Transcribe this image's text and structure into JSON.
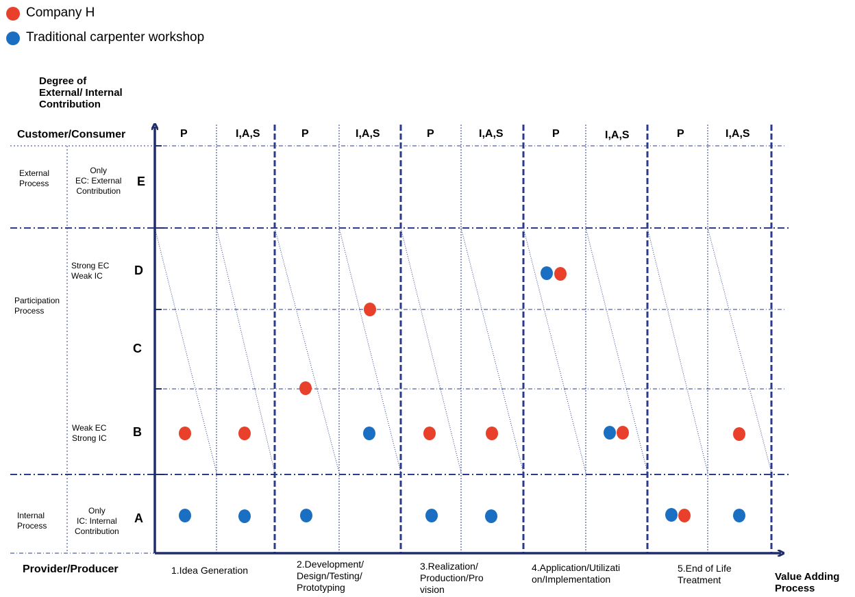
{
  "colors": {
    "company_h": "#e8402a",
    "carpenter": "#1a6fc2",
    "axis": "#1f2d6b",
    "grid": "#2a3a8c"
  },
  "legend": [
    {
      "label": "Company H",
      "color": "#e8402a"
    },
    {
      "label": "Traditional carpenter workshop",
      "color": "#1a6fc2"
    }
  ],
  "axes": {
    "y_title": "Degree of\nExternal/ Internal\nContribution",
    "y_top_label": "Customer/Consumer",
    "y_bottom_label": "Provider/Producer",
    "x_title": "Value Adding\nProcess"
  },
  "columns": [
    "P",
    "I,A,S",
    "P",
    "I,A,S",
    "P",
    "I,A,S",
    "P",
    "I,A,S",
    "P",
    "I,A,S"
  ],
  "phases": [
    "1.Idea Generation",
    "2.Development/\nDesign/Testing/\nPrototyping",
    "3.Realization/\nProduction/Pro\nvision",
    "4.Application/Utilizati\non/Implementation",
    "5.End of Life\nTreatment"
  ],
  "levels": [
    "E",
    "D",
    "C",
    "B",
    "A"
  ],
  "level_descriptions": {
    "E": "Only\nEC: External\nContribution",
    "D": "Strong EC\nWeak  IC",
    "B": "Weak  EC\nStrong IC",
    "A": "Only\nIC: Internal\nContribution"
  },
  "processes": [
    "External\nProcess",
    "Participation\nProcess",
    "Internal\nProcess"
  ],
  "points": [
    {
      "series": "Company H",
      "column": "1 P",
      "level": "B"
    },
    {
      "series": "Company H",
      "column": "1 I,A,S",
      "level": "B"
    },
    {
      "series": "Company H",
      "column": "2 P",
      "level": "B/C boundary"
    },
    {
      "series": "Company H",
      "column": "2 I,A,S",
      "level": "C/D boundary"
    },
    {
      "series": "Company H",
      "column": "3 P",
      "level": "B"
    },
    {
      "series": "Company H",
      "column": "3 I,A,S",
      "level": "B"
    },
    {
      "series": "Company H",
      "column": "4 P",
      "level": "D"
    },
    {
      "series": "Company H",
      "column": "4 I,A,S",
      "level": "B"
    },
    {
      "series": "Company H",
      "column": "5 P",
      "level": "A"
    },
    {
      "series": "Company H",
      "column": "5 I,A,S",
      "level": "B"
    },
    {
      "series": "Traditional carpenter workshop",
      "column": "1 P",
      "level": "A"
    },
    {
      "series": "Traditional carpenter workshop",
      "column": "1 I,A,S",
      "level": "A"
    },
    {
      "series": "Traditional carpenter workshop",
      "column": "2 P",
      "level": "A"
    },
    {
      "series": "Traditional carpenter workshop",
      "column": "2 I,A,S",
      "level": "B"
    },
    {
      "series": "Traditional carpenter workshop",
      "column": "3 P",
      "level": "A"
    },
    {
      "series": "Traditional carpenter workshop",
      "column": "3 I,A,S",
      "level": "A"
    },
    {
      "series": "Traditional carpenter workshop",
      "column": "4 P",
      "level": "D"
    },
    {
      "series": "Traditional carpenter workshop",
      "column": "4 I,A,S",
      "level": "B"
    },
    {
      "series": "Traditional carpenter workshop",
      "column": "5 P",
      "level": "A"
    },
    {
      "series": "Traditional carpenter workshop",
      "column": "5 I,A,S",
      "level": "A"
    }
  ]
}
